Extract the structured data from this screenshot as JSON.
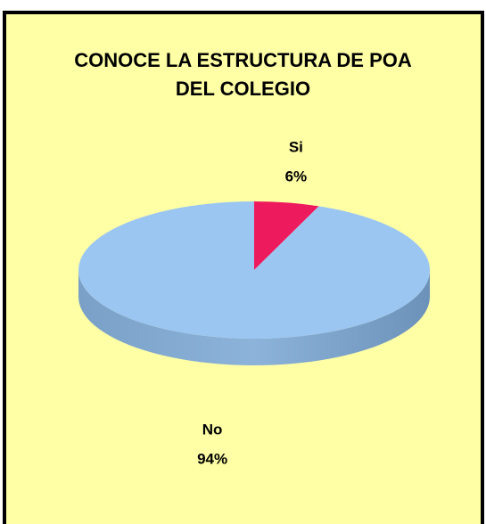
{
  "chart_data": {
    "type": "pie",
    "title": "CONOCE LA ESTRUCTURA DE POA DEL COLEGIO",
    "categories": [
      "Si",
      "No"
    ],
    "values": [
      6,
      94
    ],
    "value_labels": [
      "6%",
      "94%"
    ],
    "colors": [
      "#ee1a5e",
      "#9cc6f2"
    ]
  }
}
